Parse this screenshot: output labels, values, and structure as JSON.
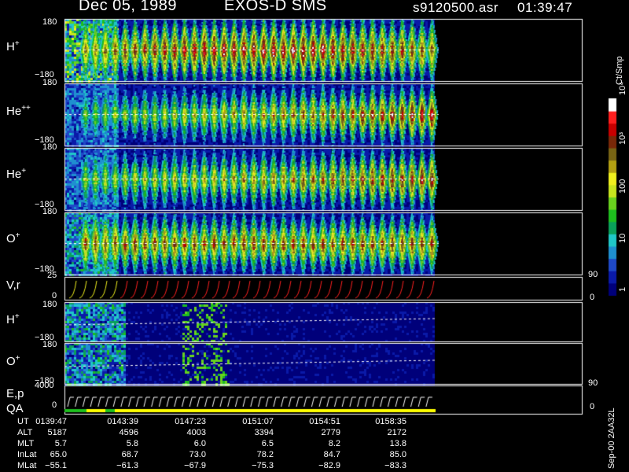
{
  "header": {
    "date": "Dec 05, 1989",
    "instrument": "EXOS-D SMS",
    "file": "s9120500.asr",
    "time": "01:39:47"
  },
  "panels": [
    {
      "label": "H",
      "sup": "+",
      "top_tick": "180",
      "bottom_tick": "−180"
    },
    {
      "label": "He",
      "sup": "++",
      "top_tick": "180",
      "bottom_tick": "−180"
    },
    {
      "label": "He",
      "sup": "+",
      "top_tick": "180",
      "bottom_tick": "−180"
    },
    {
      "label": "O",
      "sup": "+",
      "top_tick": "180",
      "bottom_tick": "−180"
    }
  ],
  "vr_panel": {
    "label": "V,r",
    "top_tick": "25",
    "bottom_tick": "0",
    "right_top": "90",
    "right_bottom": "0"
  },
  "low_panels": [
    {
      "label": "H",
      "sup": "+",
      "top_tick": "180",
      "bottom_tick": "−180"
    },
    {
      "label": "O",
      "sup": "+",
      "top_tick": "180",
      "bottom_tick": "−180"
    }
  ],
  "ep_panel": {
    "label": "E,p",
    "label2": "QA",
    "top_tick": "4000",
    "bottom_tick": "0",
    "right_top": "90",
    "right_bottom": "0"
  },
  "colorbar": {
    "unit": "Ct/Smp",
    "ticks": [
      {
        "label": "1",
        "level": 0.0
      },
      {
        "label": "10",
        "level": 0.25
      },
      {
        "label": "100",
        "level": 0.5
      },
      {
        "label": "10³",
        "level": 0.75
      },
      {
        "label": "10⁴",
        "level": 1.0
      }
    ],
    "colors": [
      "#00007a",
      "#0a1aa8",
      "#1f49c8",
      "#1f8fd0",
      "#20c8c8",
      "#0aa05a",
      "#1ebe1e",
      "#6ad21e",
      "#c8e61e",
      "#f0f01e",
      "#b4a012",
      "#786414",
      "#7a2808",
      "#c80000",
      "#ff1e1e",
      "#ffffff"
    ]
  },
  "side_code": "Sep-00 2AA32L",
  "footer": {
    "rows": [
      {
        "label": "UT",
        "values": [
          "0139:47",
          "0143:39",
          "0147:23",
          "0151:07",
          "0154:51",
          "0158:35"
        ]
      },
      {
        "label": "ALT",
        "values": [
          "5187",
          "4596",
          "4003",
          "3394",
          "2779",
          "2172"
        ]
      },
      {
        "label": "MLT",
        "values": [
          "5.7",
          "5.8",
          "6.0",
          "6.5",
          "8.2",
          "13.8"
        ]
      },
      {
        "label": "InLat",
        "values": [
          "65.0",
          "68.7",
          "73.0",
          "78.2",
          "84.7",
          "85.0"
        ]
      },
      {
        "label": "MLat",
        "values": [
          "−55.1",
          "−61.3",
          "−67.9",
          "−75.3",
          "−82.9",
          "−83.3"
        ]
      }
    ]
  },
  "chart_data": {
    "type": "heatmap",
    "title": "Dec 05, 1989   EXOS-D SMS",
    "time_ticks": [
      "0139:47",
      "0143:39",
      "0147:23",
      "0151:07",
      "0154:51",
      "0158:35"
    ],
    "pitch_angle_range": [
      -180,
      180
    ],
    "color_scale": "log",
    "color_range": [
      1,
      10000
    ],
    "color_unit": "Ct/Smp",
    "species": [
      "H+",
      "He++",
      "He+",
      "O+"
    ],
    "spin_count": 36,
    "data_coverage_fraction": 0.85
  }
}
